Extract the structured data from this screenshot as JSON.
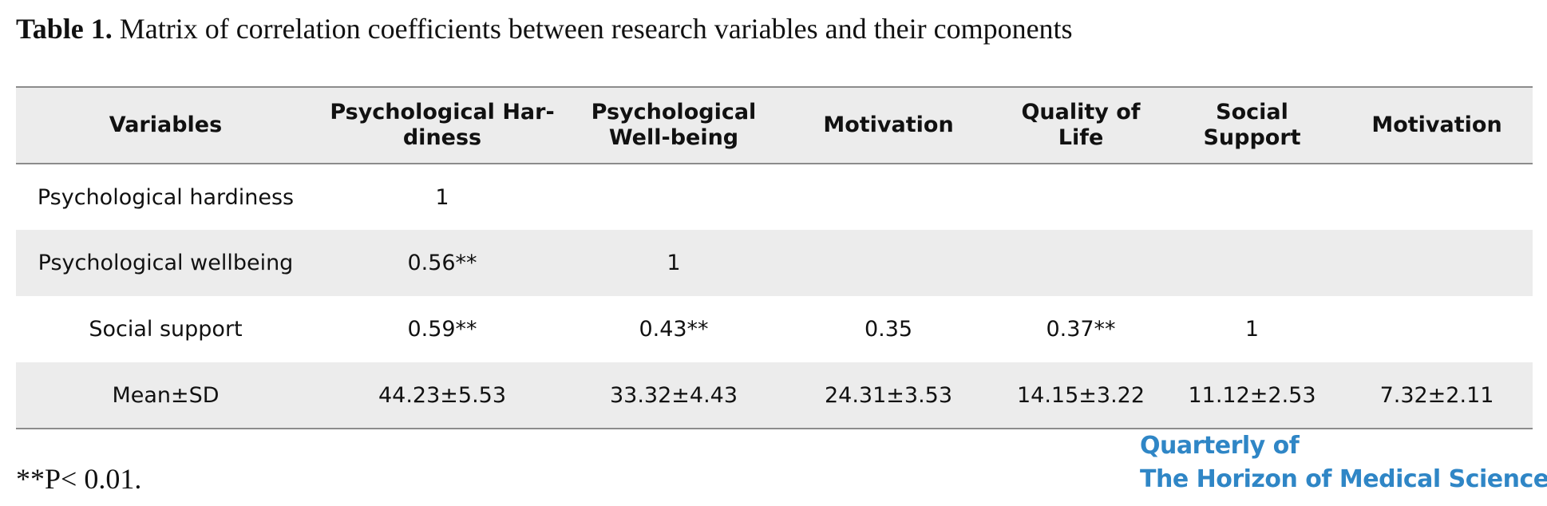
{
  "caption": {
    "label": "Table 1.",
    "text": " Matrix of correlation coefficients between research variables and their components"
  },
  "table": {
    "headers": [
      "Variables",
      "Psychological Har-diness",
      "Psychological Well-being",
      "Motivation",
      "Quality of Life",
      "Social Support",
      "Motivation"
    ],
    "rows": [
      [
        "Psychological hardiness",
        "1",
        "",
        "",
        "",
        "",
        ""
      ],
      [
        "Psychological wellbeing",
        "0.56**",
        "1",
        "",
        "",
        "",
        ""
      ],
      [
        "Social support",
        "0.59**",
        "0.43**",
        "0.35",
        "0.37**",
        "1",
        ""
      ],
      [
        "Mean±SD",
        "44.23±5.53",
        "33.32±4.43",
        "24.31±3.53",
        "14.15±3.22",
        "11.12±2.53",
        "7.32±2.11"
      ]
    ]
  },
  "footnote": "**P< 0.01.",
  "logo": {
    "line1": "Quarterly of",
    "line2": "The Horizon of Medical Sciences"
  }
}
